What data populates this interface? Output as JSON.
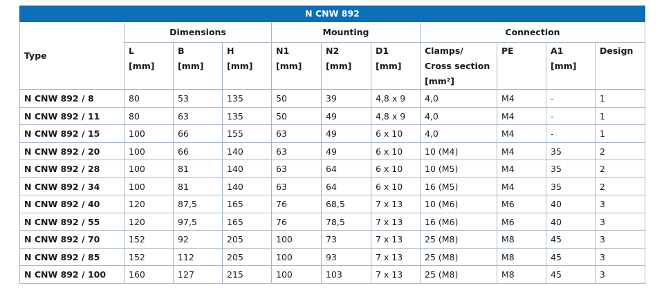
{
  "table": {
    "title": "N CNW 892",
    "type_header": "Type",
    "groups": [
      "Dimensions",
      "Mounting",
      "Connection"
    ],
    "columns": [
      [
        "L",
        "[mm]"
      ],
      [
        "B",
        "[mm]"
      ],
      [
        "H",
        "[mm]"
      ],
      [
        "N1",
        "[mm]"
      ],
      [
        "N2",
        "[mm]"
      ],
      [
        "D1",
        "[mm]"
      ],
      [
        "Clamps/",
        "Cross section",
        "[mm²]"
      ],
      [
        "PE"
      ],
      [
        "A1",
        "[mm]"
      ],
      [
        "Design"
      ]
    ],
    "rows": [
      [
        "N CNW 892 / 8",
        "80",
        "53",
        "135",
        "50",
        "39",
        "4,8 x 9",
        "4,0",
        "M4",
        "-",
        "1"
      ],
      [
        "N CNW 892 / 11",
        "80",
        "63",
        "135",
        "50",
        "49",
        "4,8 x 9",
        "4,0",
        "M4",
        "-",
        "1"
      ],
      [
        "N CNW 892 / 15",
        "100",
        "66",
        "155",
        "63",
        "49",
        "6 x 10",
        "4,0",
        "M4",
        "-",
        "1"
      ],
      [
        "N CNW 892 / 20",
        "100",
        "66",
        "140",
        "63",
        "49",
        "6 x 10",
        "10 (M4)",
        "M4",
        "35",
        "2"
      ],
      [
        "N CNW 892 / 28",
        "100",
        "81",
        "140",
        "63",
        "64",
        "6 x 10",
        "10 (M5)",
        "M4",
        "35",
        "2"
      ],
      [
        "N CNW 892 / 34",
        "100",
        "81",
        "140",
        "63",
        "64",
        "6 x 10",
        "16 (M5)",
        "M4",
        "35",
        "2"
      ],
      [
        "N CNW 892 / 40",
        "120",
        "87,5",
        "165",
        "76",
        "68,5",
        "7 x 13",
        "10 (M6)",
        "M6",
        "40",
        "3"
      ],
      [
        "N CNW 892 / 55",
        "120",
        "97,5",
        "165",
        "76",
        "78,5",
        "7 x 13",
        "16 (M6)",
        "M6",
        "40",
        "3"
      ],
      [
        "N CNW 892 / 70",
        "152",
        "92",
        "205",
        "100",
        "73",
        "7 x 13",
        "25 (M8)",
        "M8",
        "45",
        "3"
      ],
      [
        "N CNW 892 / 85",
        "152",
        "112",
        "205",
        "100",
        "93",
        "7 x 13",
        "25 (M8)",
        "M8",
        "45",
        "3"
      ],
      [
        "N CNW 892 / 100",
        "160",
        "127",
        "215",
        "100",
        "103",
        "7 x 13",
        "25 (M8)",
        "M8",
        "45",
        "3"
      ]
    ]
  }
}
